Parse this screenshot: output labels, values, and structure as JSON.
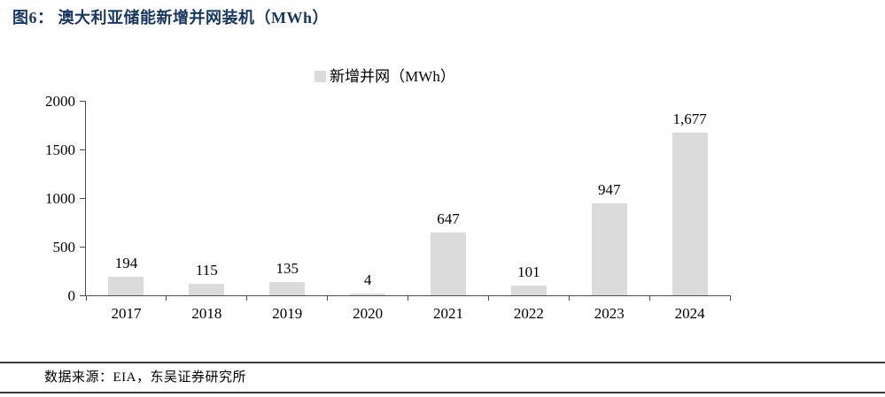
{
  "figure": {
    "title": "图6： 澳大利亚储能新增并网装机（MWh）",
    "source": "数据来源：EIA，东吴证券研究所"
  },
  "colors": {
    "title_navy": "#17375E",
    "bar_gray": "#DBDBDB",
    "axis_gray": "#4d4d4d",
    "rule_dark": "#3a3a3a",
    "text_black": "#000000"
  },
  "chart_data": {
    "type": "bar",
    "title": "澳大利亚储能新增并网装机（MWh）",
    "legend": "新增并网（MWh）",
    "legend_position": "top-center",
    "categories": [
      "2017",
      "2018",
      "2019",
      "2020",
      "2021",
      "2022",
      "2023",
      "2024"
    ],
    "values": [
      194,
      115,
      135,
      4,
      647,
      101,
      947,
      1677
    ],
    "value_labels": [
      "194",
      "115",
      "135",
      "4",
      "647",
      "101",
      "947",
      "1,677"
    ],
    "xlabel": "",
    "ylabel": "",
    "ylim": [
      0,
      2000
    ],
    "yticks": [
      0,
      500,
      1000,
      1500,
      2000
    ],
    "ytick_labels": [
      "0",
      "500",
      "1000",
      "1500",
      "2000"
    ],
    "grid": false,
    "bar_color": "#DBDBDB"
  }
}
